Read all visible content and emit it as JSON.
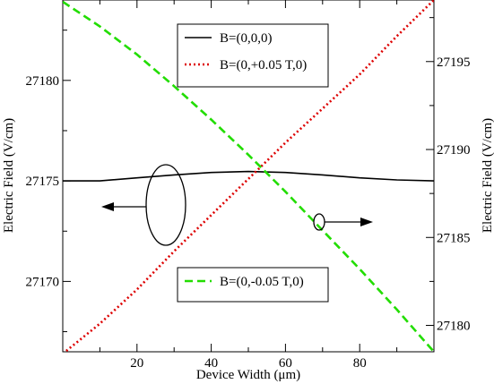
{
  "chart_data": {
    "type": "line",
    "xlabel": "Device Width (μm)",
    "ylabel_left": "Electric Field (V/cm)",
    "ylabel_right": "Electric Field (V/cm)",
    "xlim": [
      0,
      100
    ],
    "ylim_left": [
      27166.5,
      27184
    ],
    "ylim_right": [
      27178.5,
      27198.5
    ],
    "x_ticks": [
      20,
      40,
      60,
      80
    ],
    "y_ticks_left": [
      27170,
      27175,
      27180
    ],
    "y_ticks_right": [
      27180,
      27185,
      27190,
      27195
    ],
    "grid": false,
    "series": [
      {
        "name": "B=(0,0,0)",
        "axis": "left",
        "color": "#000000",
        "dash": "solid",
        "x": [
          0,
          10,
          20,
          30,
          40,
          50,
          60,
          70,
          80,
          90,
          100
        ],
        "y": [
          27175.0,
          27175.0,
          27175.15,
          27175.3,
          27175.42,
          27175.47,
          27175.42,
          27175.3,
          27175.15,
          27175.05,
          27175.0
        ]
      },
      {
        "name": "B=(0,+0.05 T,0)",
        "axis": "left",
        "color": "#dd0000",
        "dash": "dotted",
        "x": [
          0,
          10,
          20,
          30,
          40,
          50,
          60,
          70,
          80,
          90,
          100
        ],
        "y": [
          27166.4,
          27167.9,
          27169.6,
          27171.5,
          27173.3,
          27175.1,
          27176.9,
          27178.6,
          27180.3,
          27182.2,
          27184.0
        ]
      },
      {
        "name": "B=(0,-0.05 T,0)",
        "axis": "right",
        "color": "#22dd00",
        "dash": "dashed",
        "x": [
          0,
          10,
          20,
          30,
          40,
          50,
          60,
          70,
          80,
          90,
          100
        ],
        "y": [
          27198.4,
          27197.0,
          27195.4,
          27193.6,
          27191.7,
          27189.7,
          27187.6,
          27185.4,
          27183.2,
          27180.9,
          27178.5
        ]
      }
    ],
    "legend_top": [
      {
        "label": "B=(0,0,0)",
        "color": "#000000",
        "dash": "solid"
      },
      {
        "label": "B=(0,+0.05 T,0)",
        "color": "#dd0000",
        "dash": "dotted"
      }
    ],
    "legend_bottom": [
      {
        "label": "B=(0,-0.05 T,0)",
        "color": "#22dd00",
        "dash": "dashed"
      }
    ],
    "legend_placement": [
      "top-center",
      "bottom-center"
    ],
    "annotations": [
      {
        "type": "ellipse-arrow",
        "points_to": "left-axis",
        "description": "marks black and red curves"
      },
      {
        "type": "ellipse-arrow",
        "points_to": "right-axis",
        "description": "marks green curve"
      }
    ]
  }
}
